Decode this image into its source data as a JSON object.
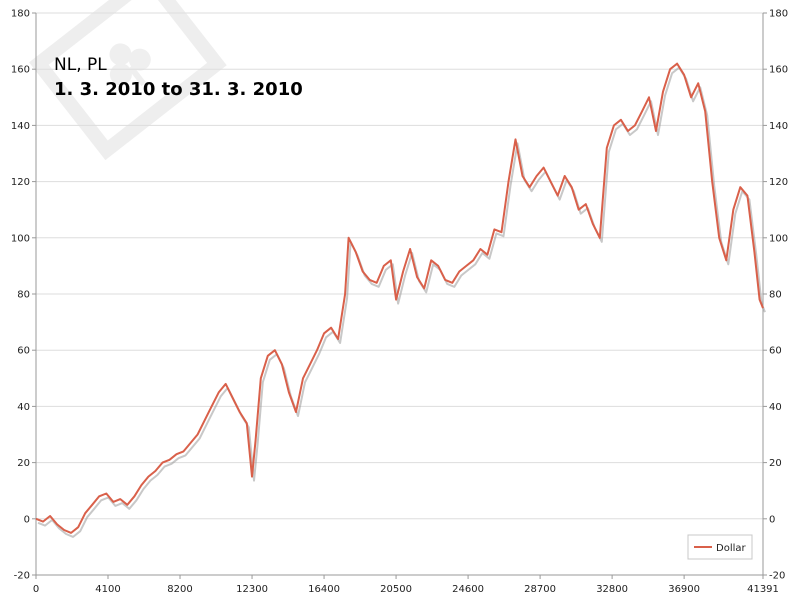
{
  "chart_data": {
    "type": "line",
    "title": "NL, PL",
    "subtitle": "1. 3. 2010 to 31. 3. 2010",
    "xlabel": "",
    "ylabel": "",
    "xlim": [
      0,
      41391
    ],
    "ylim": [
      -20,
      180
    ],
    "x_ticks": [
      "0",
      "4100",
      "8200",
      "12300",
      "16400",
      "20500",
      "24600",
      "28700",
      "32800",
      "36900",
      "41391"
    ],
    "x_tick_values": [
      0,
      4100,
      8200,
      12300,
      16400,
      20500,
      24600,
      28700,
      32800,
      36900,
      41391
    ],
    "y_ticks": [
      "-20",
      "0",
      "20",
      "40",
      "60",
      "80",
      "100",
      "120",
      "140",
      "160",
      "180"
    ],
    "y_tick_values": [
      -20,
      0,
      20,
      40,
      60,
      80,
      100,
      120,
      140,
      160,
      180
    ],
    "grid": true,
    "legend_position": "bottom-right",
    "colors": {
      "series": "#d9604a",
      "shadow": "#9a9a9a",
      "grid": "#dddddd",
      "axis": "#999999"
    },
    "series": [
      {
        "name": "Dollar",
        "x": [
          0,
          400,
          800,
          1200,
          1600,
          2000,
          2400,
          2800,
          3200,
          3600,
          4000,
          4400,
          4800,
          5200,
          5600,
          6000,
          6400,
          6800,
          7200,
          7600,
          8000,
          8400,
          8800,
          9200,
          9600,
          10000,
          10400,
          10800,
          11200,
          11600,
          12000,
          12300,
          12500,
          12800,
          13200,
          13600,
          14000,
          14400,
          14800,
          15200,
          15600,
          16000,
          16400,
          16800,
          17200,
          17600,
          17800,
          18200,
          18600,
          19000,
          19400,
          19800,
          20200,
          20500,
          20900,
          21300,
          21700,
          22100,
          22500,
          22900,
          23300,
          23700,
          24100,
          24500,
          24900,
          25300,
          25700,
          26100,
          26500,
          26900,
          27300,
          27700,
          28100,
          28500,
          28900,
          29300,
          29700,
          30100,
          30500,
          30900,
          31300,
          31700,
          32100,
          32500,
          32900,
          33300,
          33700,
          34100,
          34500,
          34900,
          35300,
          35700,
          36100,
          36500,
          36900,
          37300,
          37700,
          38100,
          38500,
          38900,
          39300,
          39700,
          40100,
          40500,
          40900,
          41200,
          41391
        ],
        "y": [
          0,
          -1,
          1,
          -2,
          -4,
          -5,
          -3,
          2,
          5,
          8,
          9,
          6,
          7,
          5,
          8,
          12,
          15,
          17,
          20,
          21,
          23,
          24,
          27,
          30,
          35,
          40,
          45,
          48,
          43,
          38,
          34,
          15,
          28,
          50,
          58,
          60,
          55,
          45,
          38,
          50,
          55,
          60,
          66,
          68,
          64,
          80,
          100,
          95,
          88,
          85,
          84,
          90,
          92,
          78,
          88,
          96,
          86,
          82,
          92,
          90,
          85,
          84,
          88,
          90,
          92,
          96,
          94,
          103,
          102,
          120,
          135,
          122,
          118,
          122,
          125,
          120,
          115,
          122,
          118,
          110,
          112,
          105,
          100,
          132,
          140,
          142,
          138,
          140,
          145,
          150,
          138,
          152,
          160,
          162,
          158,
          150,
          155,
          145,
          120,
          100,
          92,
          110,
          118,
          115,
          95,
          78,
          75
        ]
      }
    ]
  },
  "watermark": {
    "shape": "club-suit-tilted-frame"
  }
}
